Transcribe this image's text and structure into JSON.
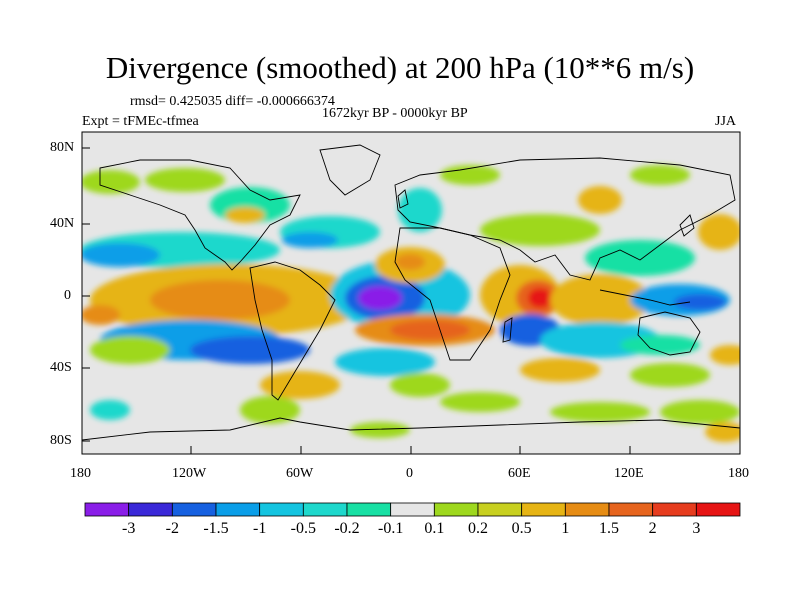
{
  "header": {
    "title": "Divergence (smoothed) at 200 hPa (10**6 m/s)",
    "stats": "rmsd= 0.425035 diff= -0.000666374",
    "period": "1672kyr BP - 0000kyr BP",
    "experiment": "Expt = tFMEc-tfmea",
    "season": "JJA"
  },
  "axes": {
    "lat_labels": [
      "80N",
      "40N",
      "0",
      "40S",
      "80S"
    ],
    "lon_labels": [
      "180",
      "120W",
      "60W",
      "0",
      "60E",
      "120E",
      "180"
    ]
  },
  "colorbar": {
    "levels": [
      "-3",
      "-2",
      "-1.5",
      "-1",
      "-0.5",
      "-0.2",
      "-0.1",
      "0.1",
      "0.2",
      "0.5",
      "1",
      "1.5",
      "2",
      "3"
    ],
    "colors": [
      "#8a1ee8",
      "#3a28d8",
      "#1660e0",
      "#0a9ee8",
      "#14c4e0",
      "#1ed8cc",
      "#18e0a4",
      "#e6e6e6",
      "#9ed81e",
      "#c8d020",
      "#e6b414",
      "#e68c14",
      "#e6641e",
      "#e63c1e",
      "#e61414"
    ]
  },
  "colors": {
    "land_outline": "#000000",
    "background": "#e6e6e6"
  }
}
